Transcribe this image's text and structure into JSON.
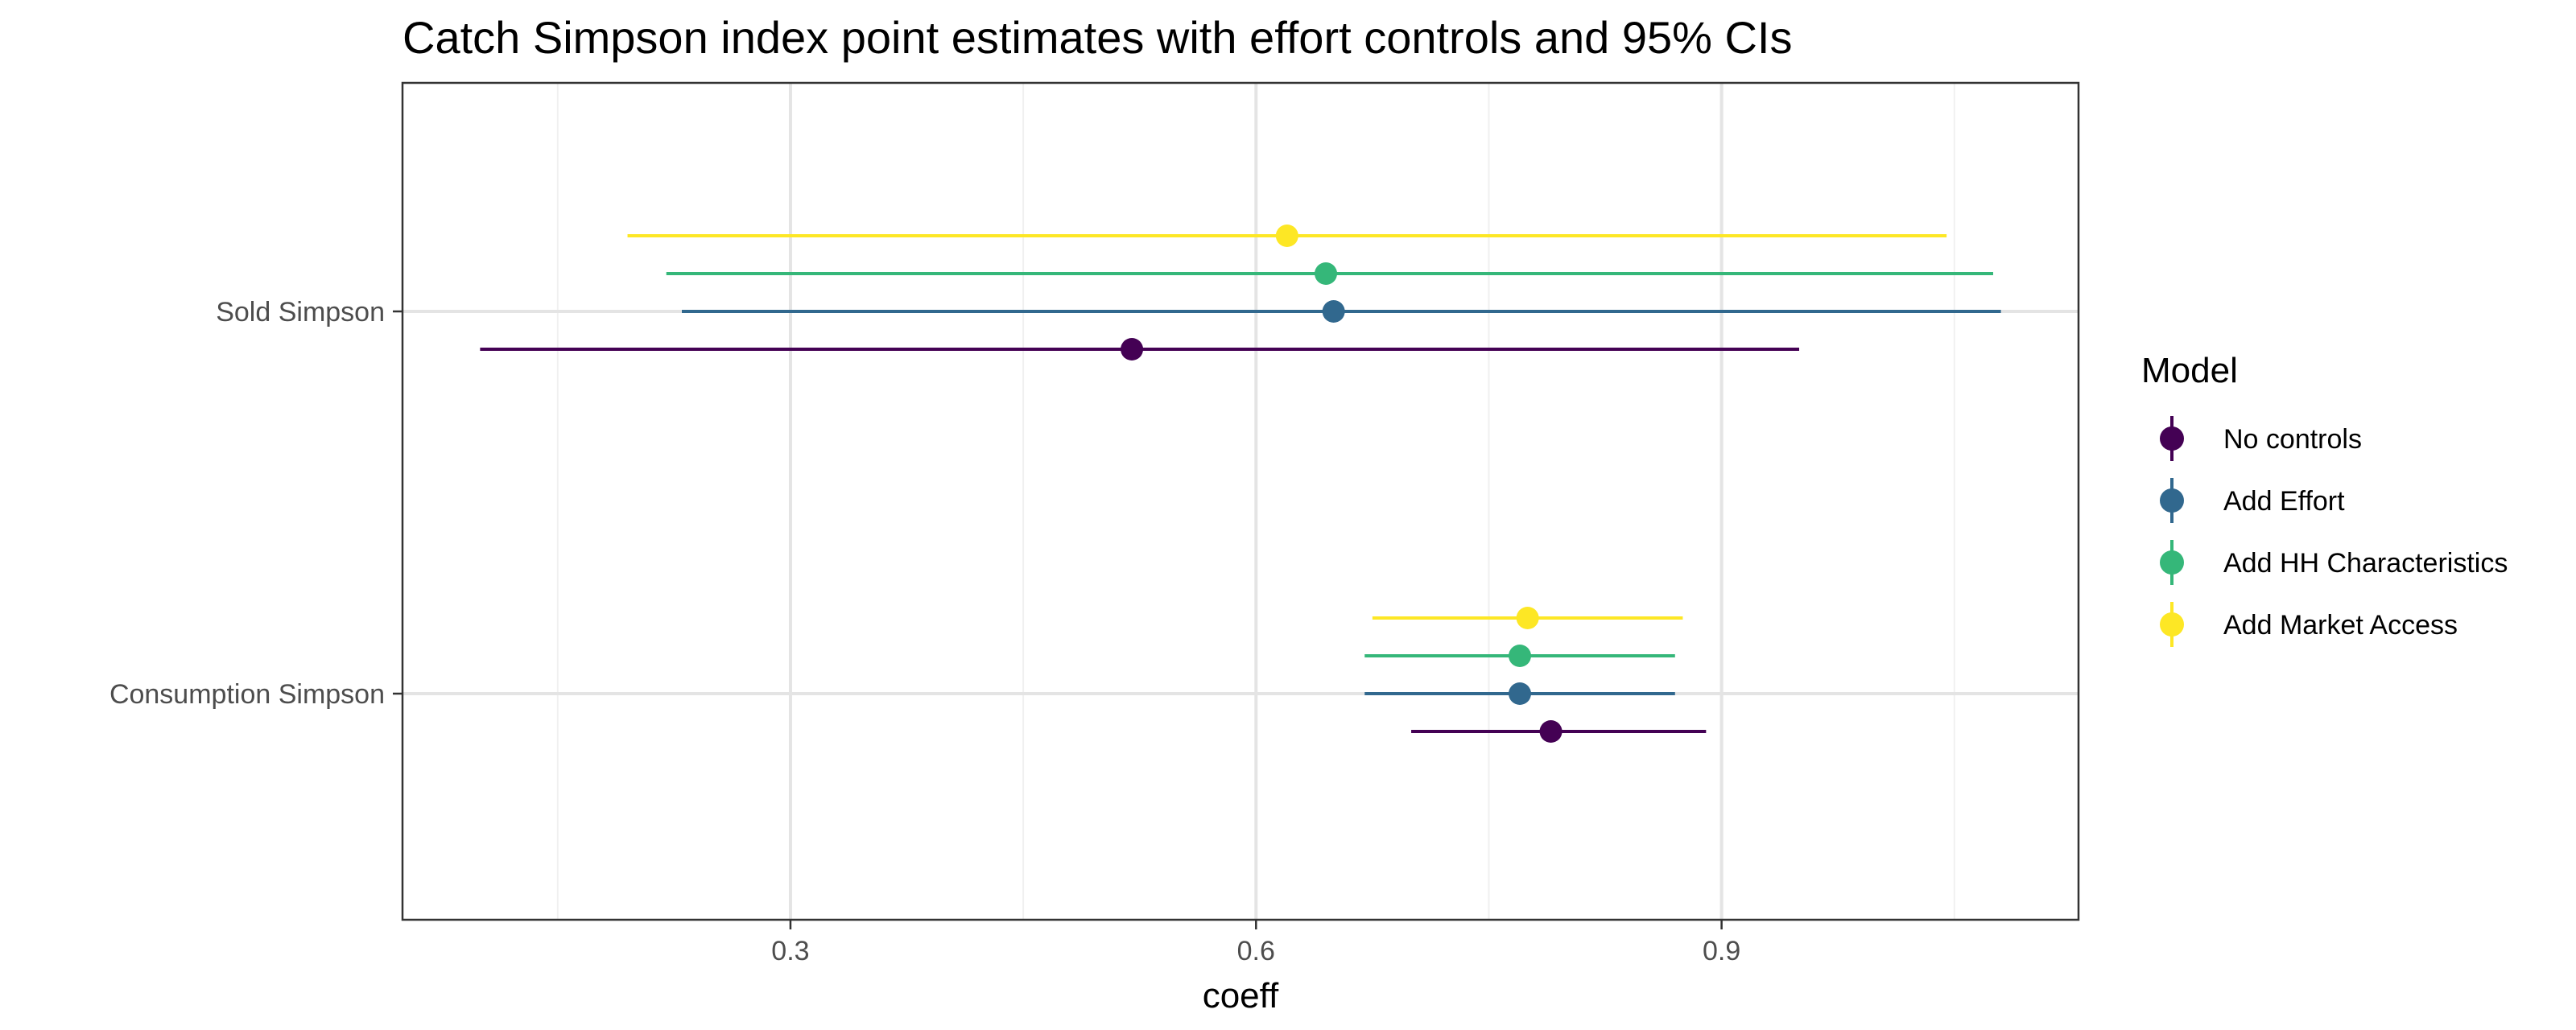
{
  "chart_data": {
    "type": "scatter",
    "title": "Catch Simpson index point estimates with effort controls and 95% CIs",
    "xlabel": "coeff",
    "ylabel": "",
    "xlim": [
      0.05,
      1.13
    ],
    "x_ticks": [
      {
        "value": 0.3,
        "label": "0.3"
      },
      {
        "value": 0.6,
        "label": "0.6"
      },
      {
        "value": 0.9,
        "label": "0.9"
      }
    ],
    "x_minor_ticks": [
      0.15,
      0.45,
      0.75,
      1.05
    ],
    "categories": [
      "Sold Simpson",
      "Consumption Simpson"
    ],
    "grid": true,
    "legend": {
      "title": "Model",
      "position": "right"
    },
    "series": [
      {
        "name": "No controls",
        "color": "#440154",
        "points": [
          {
            "category": "Sold Simpson",
            "estimate": 0.52,
            "low": 0.1,
            "high": 0.95
          },
          {
            "category": "Consumption Simpson",
            "estimate": 0.79,
            "low": 0.7,
            "high": 0.89
          }
        ]
      },
      {
        "name": "Add Effort",
        "color": "#31688E",
        "points": [
          {
            "category": "Sold Simpson",
            "estimate": 0.65,
            "low": 0.23,
            "high": 1.08
          },
          {
            "category": "Consumption Simpson",
            "estimate": 0.77,
            "low": 0.67,
            "high": 0.87
          }
        ]
      },
      {
        "name": "Add HH Characteristics",
        "color": "#35B779",
        "points": [
          {
            "category": "Sold Simpson",
            "estimate": 0.645,
            "low": 0.22,
            "high": 1.075
          },
          {
            "category": "Consumption Simpson",
            "estimate": 0.77,
            "low": 0.67,
            "high": 0.87
          }
        ]
      },
      {
        "name": "Add Market Access",
        "color": "#FDE725",
        "points": [
          {
            "category": "Sold Simpson",
            "estimate": 0.62,
            "low": 0.195,
            "high": 1.045
          },
          {
            "category": "Consumption Simpson",
            "estimate": 0.775,
            "low": 0.675,
            "high": 0.875
          }
        ]
      }
    ]
  }
}
